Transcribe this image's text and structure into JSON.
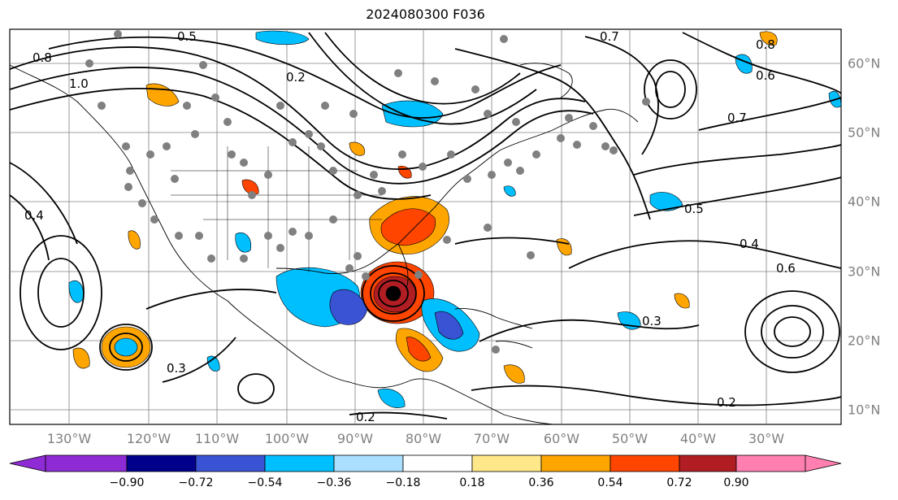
{
  "title": "2024080300 F036",
  "lon_labels": [
    "130°W",
    "120°W",
    "110°W",
    "100°W",
    "90°W",
    "80°W",
    "70°W",
    "60°W",
    "50°W",
    "40°W",
    "30°W"
  ],
  "lat_labels": [
    "60°N",
    "50°N",
    "40°N",
    "30°N",
    "20°N",
    "10°N"
  ],
  "contour_labels": [
    "0.5",
    "0.7",
    "0.8",
    "1.0",
    "0.2",
    "0.6",
    "0.4",
    "0.3",
    "0.2",
    "0.7",
    "0.8",
    "0.6",
    "0.5",
    "0.4",
    "0.3",
    "0.2"
  ],
  "colorbar": {
    "ticks": [
      "−0.90",
      "−0.72",
      "−0.54",
      "−0.36",
      "−0.18",
      "0.18",
      "0.36",
      "0.54",
      "0.72",
      "0.90"
    ],
    "colors": [
      "#8e2bd4",
      "#00008b",
      "#3a52d4",
      "#00bfff",
      "#aadfff",
      "#ffffff",
      "#ffe88a",
      "#ffa500",
      "#ff4500",
      "#b01e24",
      "#ff80b0"
    ]
  },
  "colors": {
    "land": "#000000",
    "grid": "#808080",
    "contour": "#000000",
    "dots": "#808080"
  }
}
